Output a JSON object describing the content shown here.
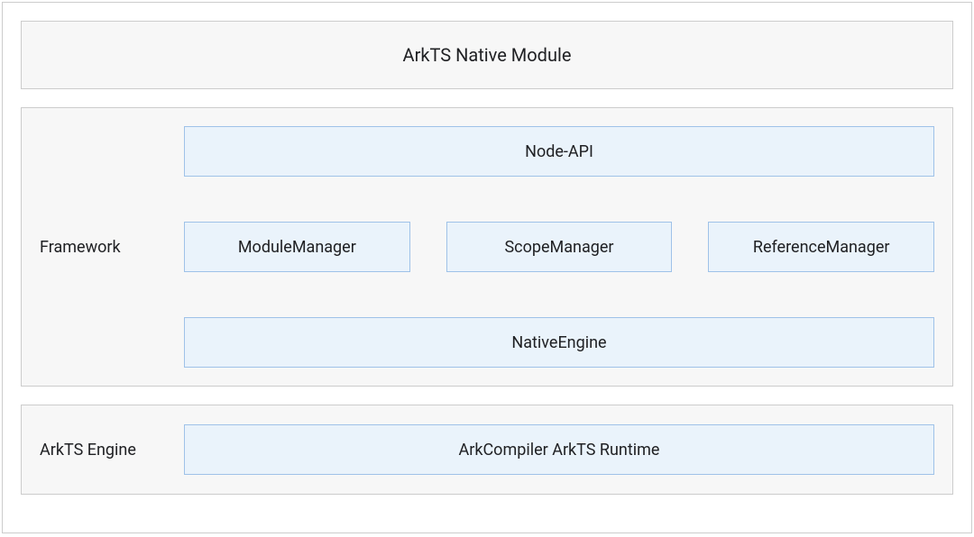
{
  "diagram": {
    "type": "layered-architecture",
    "background_color": "#ffffff",
    "outer_border_color": "#cccccc",
    "layer_background_color": "#f7f7f7",
    "layer_border_color": "#cccccc",
    "inner_box_background_color": "#eaf3fb",
    "inner_box_border_color": "#9fc2e8",
    "text_color": "#202124",
    "title_fontsize": 20,
    "label_fontsize": 18
  },
  "top_layer": {
    "title": "ArkTS Native Module"
  },
  "framework_layer": {
    "label": "Framework",
    "row1": {
      "box": "Node-API"
    },
    "row2": {
      "box1": "ModuleManager",
      "box2": "ScopeManager",
      "box3": "ReferenceManager"
    },
    "row3": {
      "box": "NativeEngine"
    }
  },
  "engine_layer": {
    "label": "ArkTS Engine",
    "box": "ArkCompiler ArkTS Runtime"
  }
}
